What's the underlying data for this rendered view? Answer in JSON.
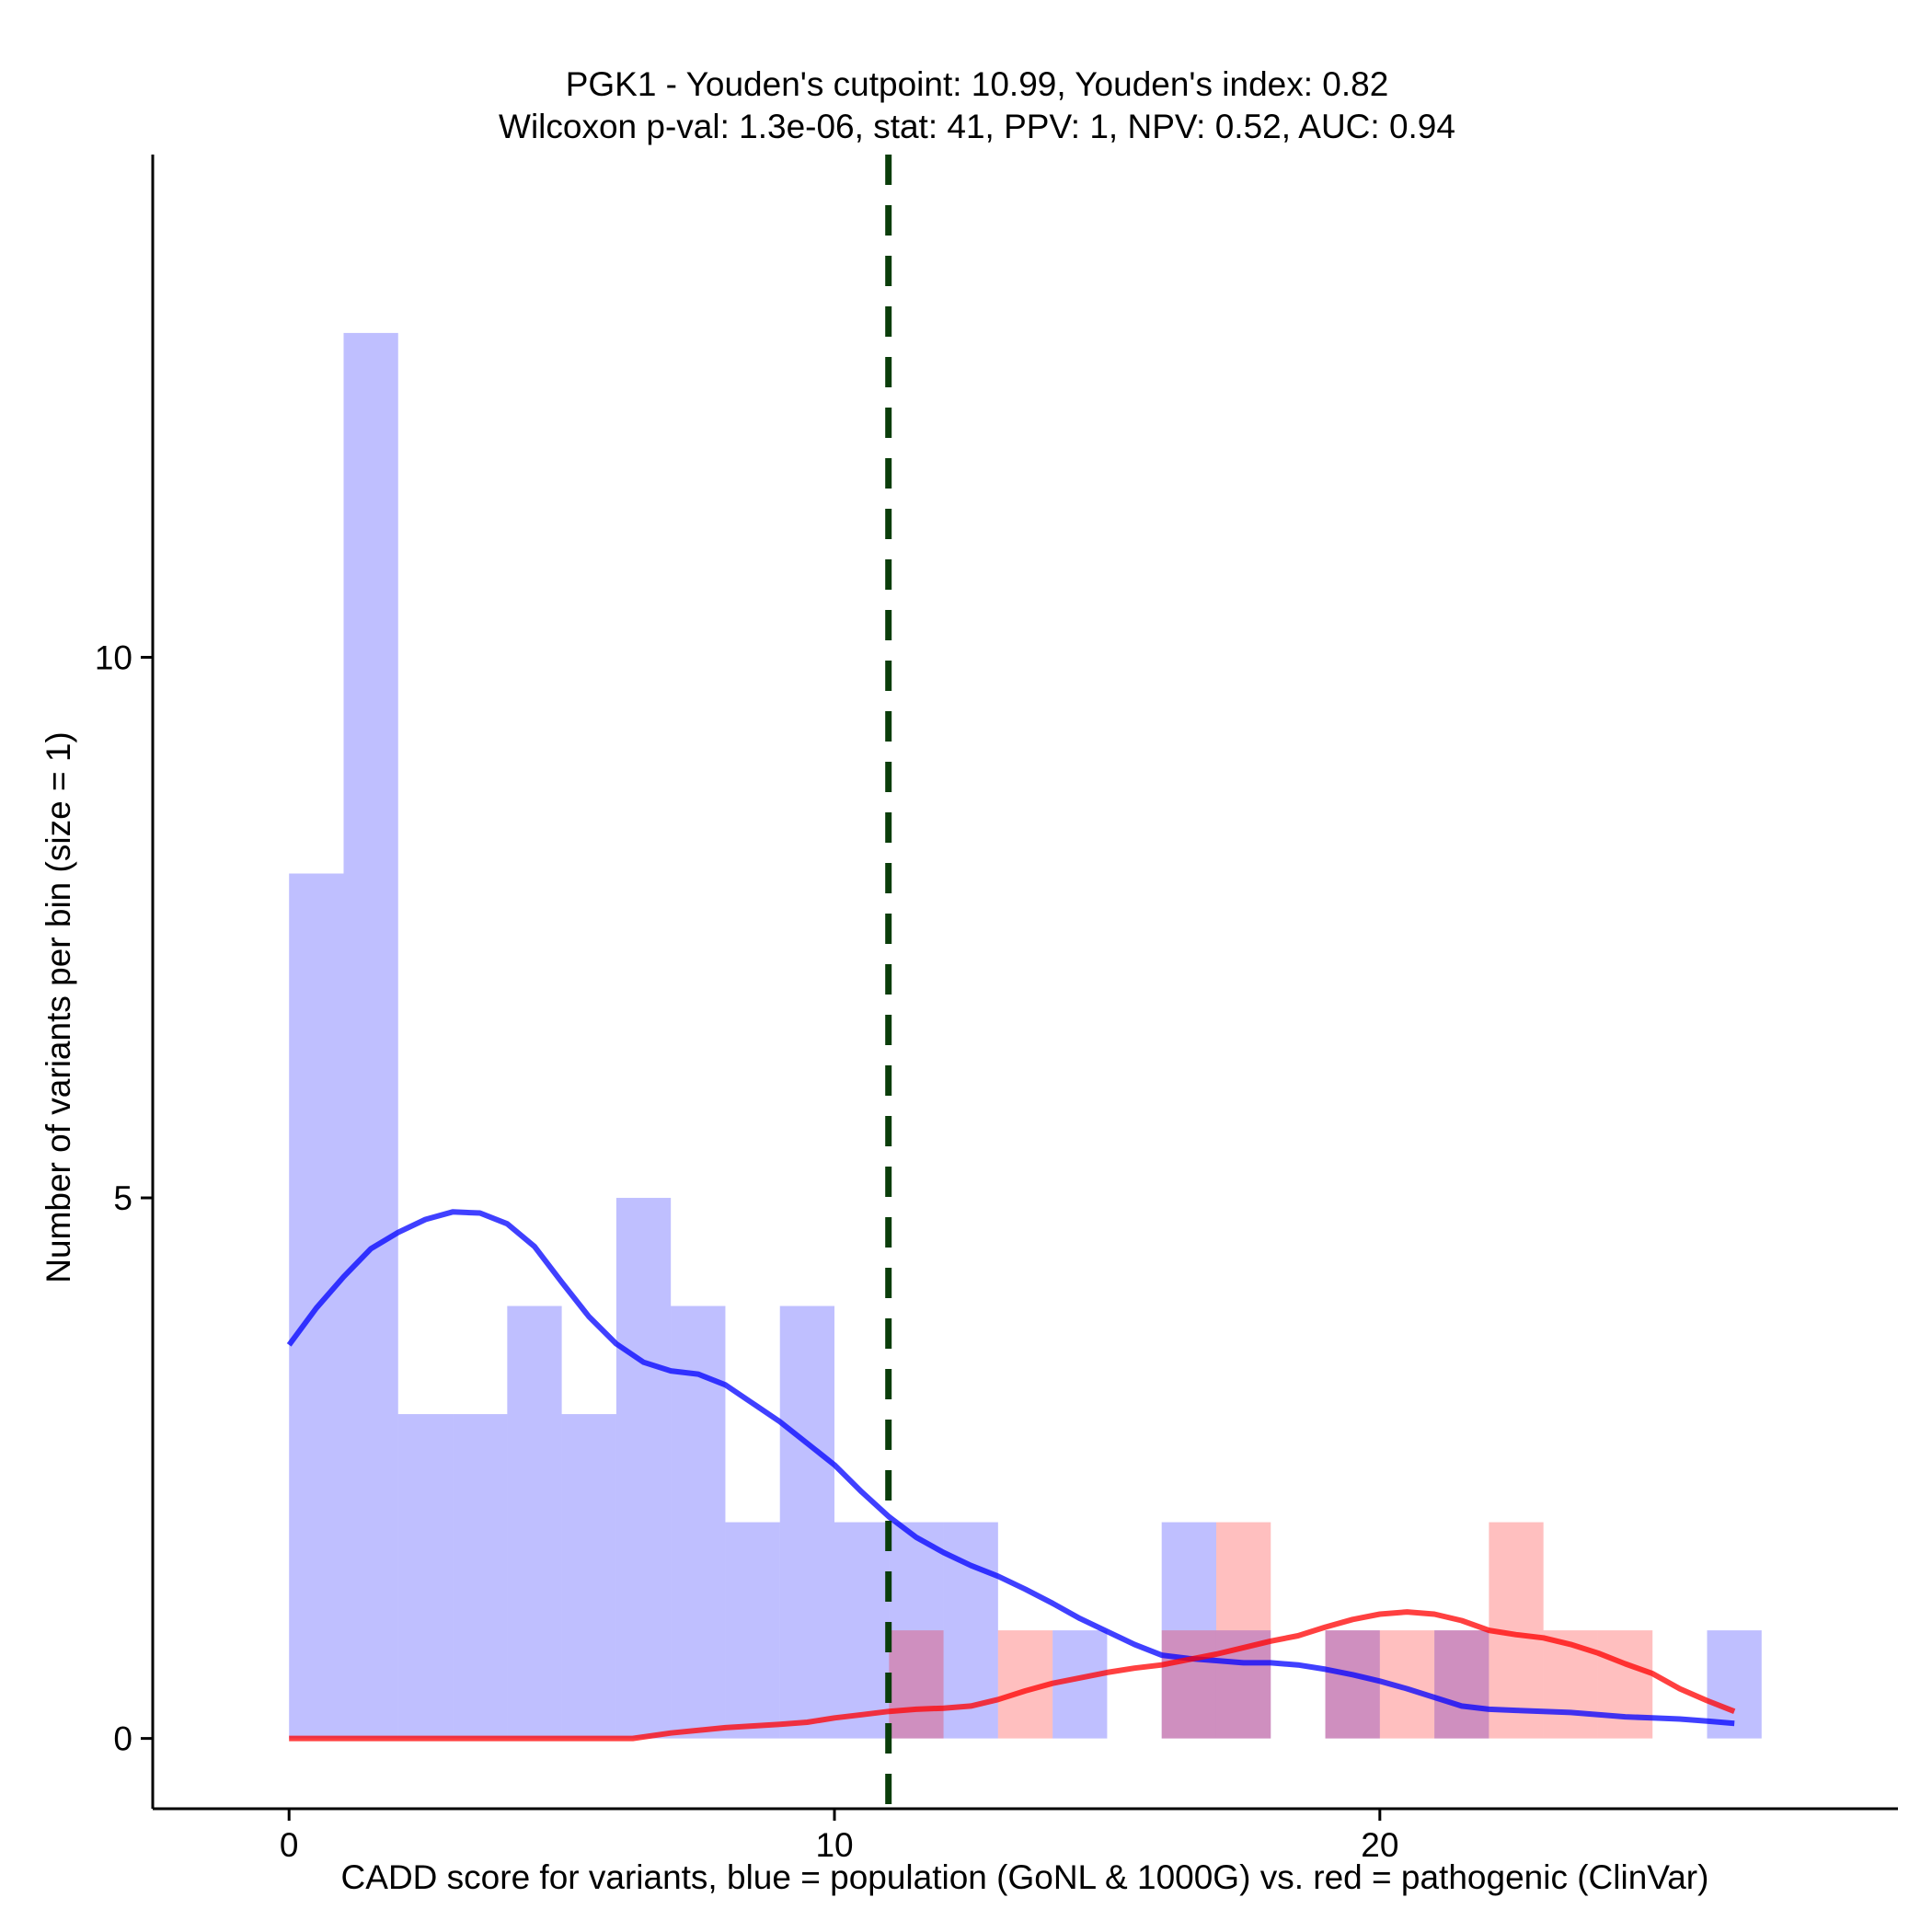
{
  "chart_data": {
    "type": "bar",
    "title_line1": "PGK1 - Youden's cutpoint: 10.99, Youden's index: 0.82",
    "title_line2": "Wilcoxon p-val: 1.3e-06, stat: 41, PPV: 1, NPV: 0.52, AUC: 0.94",
    "xlabel": "CADD score for variants, blue = population (GoNL & 1000G) vs. red = pathogenic (ClinVar)",
    "ylabel": "Number of variants per bin (size = 1)",
    "xlim": [
      -2.5,
      29.5
    ],
    "ylim": [
      -0.65,
      14.65
    ],
    "xticks": [
      {
        "value": 0,
        "label": "0"
      },
      {
        "value": 10,
        "label": "10"
      },
      {
        "value": 20,
        "label": "20"
      }
    ],
    "yticks": [
      {
        "value": 0,
        "label": "0"
      },
      {
        "value": 5,
        "label": "5"
      },
      {
        "value": 10,
        "label": "10"
      }
    ],
    "bin_width": 1,
    "cutpoint": 10.99,
    "series": [
      {
        "name": "population (GoNL & 1000G)",
        "color": "#0000ff",
        "bins": [
          {
            "start": 0,
            "count": 8
          },
          {
            "start": 1,
            "count": 13
          },
          {
            "start": 2,
            "count": 3
          },
          {
            "start": 3,
            "count": 3
          },
          {
            "start": 4,
            "count": 4
          },
          {
            "start": 5,
            "count": 3
          },
          {
            "start": 6,
            "count": 5
          },
          {
            "start": 7,
            "count": 4
          },
          {
            "start": 8,
            "count": 2
          },
          {
            "start": 9,
            "count": 4
          },
          {
            "start": 10,
            "count": 2
          },
          {
            "start": 11,
            "count": 2
          },
          {
            "start": 12,
            "count": 2
          },
          {
            "start": 14,
            "count": 1
          },
          {
            "start": 16,
            "count": 2
          },
          {
            "start": 17,
            "count": 1
          },
          {
            "start": 19,
            "count": 1
          },
          {
            "start": 21,
            "count": 1
          },
          {
            "start": 26,
            "count": 1
          }
        ],
        "density": [
          [
            0,
            3.64
          ],
          [
            0.5,
            3.98
          ],
          [
            1,
            4.27
          ],
          [
            1.5,
            4.53
          ],
          [
            2,
            4.68
          ],
          [
            2.5,
            4.8
          ],
          [
            3,
            4.87
          ],
          [
            3.5,
            4.86
          ],
          [
            4,
            4.76
          ],
          [
            4.5,
            4.55
          ],
          [
            5,
            4.22
          ],
          [
            5.5,
            3.9
          ],
          [
            6,
            3.65
          ],
          [
            6.5,
            3.48
          ],
          [
            7,
            3.4
          ],
          [
            7.5,
            3.37
          ],
          [
            8,
            3.27
          ],
          [
            8.5,
            3.1
          ],
          [
            9,
            2.93
          ],
          [
            9.5,
            2.73
          ],
          [
            10,
            2.53
          ],
          [
            10.5,
            2.28
          ],
          [
            11,
            2.05
          ],
          [
            11.5,
            1.86
          ],
          [
            12,
            1.72
          ],
          [
            12.5,
            1.6
          ],
          [
            13,
            1.5
          ],
          [
            13.5,
            1.38
          ],
          [
            14,
            1.25
          ],
          [
            14.5,
            1.11
          ],
          [
            15,
            0.99
          ],
          [
            15.5,
            0.87
          ],
          [
            16,
            0.77
          ],
          [
            16.5,
            0.74
          ],
          [
            17,
            0.72
          ],
          [
            17.5,
            0.7
          ],
          [
            18,
            0.7
          ],
          [
            18.5,
            0.68
          ],
          [
            19,
            0.64
          ],
          [
            19.5,
            0.59
          ],
          [
            20,
            0.53
          ],
          [
            20.5,
            0.46
          ],
          [
            21,
            0.38
          ],
          [
            21.5,
            0.3
          ],
          [
            22,
            0.27
          ],
          [
            22.5,
            0.26
          ],
          [
            23,
            0.25
          ],
          [
            23.5,
            0.24
          ],
          [
            24,
            0.22
          ],
          [
            24.5,
            0.2
          ],
          [
            25,
            0.19
          ],
          [
            25.5,
            0.18
          ],
          [
            26,
            0.16
          ],
          [
            26.5,
            0.14
          ]
        ]
      },
      {
        "name": "pathogenic (ClinVar)",
        "color": "#ff0000",
        "bins": [
          {
            "start": 11,
            "count": 1
          },
          {
            "start": 13,
            "count": 1
          },
          {
            "start": 16,
            "count": 1
          },
          {
            "start": 17,
            "count": 2
          },
          {
            "start": 19,
            "count": 1
          },
          {
            "start": 20,
            "count": 1
          },
          {
            "start": 21,
            "count": 1
          },
          {
            "start": 22,
            "count": 2
          },
          {
            "start": 23,
            "count": 1
          },
          {
            "start": 24,
            "count": 1
          }
        ],
        "density": [
          [
            0,
            0
          ],
          [
            1,
            0
          ],
          [
            2,
            0
          ],
          [
            3,
            0
          ],
          [
            4,
            0
          ],
          [
            5,
            0
          ],
          [
            6,
            0
          ],
          [
            6.3,
            0
          ],
          [
            7,
            0.05
          ],
          [
            8,
            0.1
          ],
          [
            9,
            0.13
          ],
          [
            9.5,
            0.15
          ],
          [
            10,
            0.19
          ],
          [
            10.5,
            0.22
          ],
          [
            11,
            0.25
          ],
          [
            11.5,
            0.27
          ],
          [
            12,
            0.28
          ],
          [
            12.5,
            0.3
          ],
          [
            13,
            0.36
          ],
          [
            13.5,
            0.44
          ],
          [
            14,
            0.51
          ],
          [
            14.5,
            0.56
          ],
          [
            15,
            0.61
          ],
          [
            15.5,
            0.65
          ],
          [
            16,
            0.68
          ],
          [
            16.5,
            0.73
          ],
          [
            17,
            0.78
          ],
          [
            17.5,
            0.84
          ],
          [
            18,
            0.9
          ],
          [
            18.5,
            0.95
          ],
          [
            19,
            1.03
          ],
          [
            19.5,
            1.1
          ],
          [
            20,
            1.15
          ],
          [
            20.5,
            1.17
          ],
          [
            21,
            1.15
          ],
          [
            21.5,
            1.09
          ],
          [
            22,
            1.0
          ],
          [
            22.5,
            0.96
          ],
          [
            23,
            0.93
          ],
          [
            23.5,
            0.87
          ],
          [
            24,
            0.79
          ],
          [
            24.5,
            0.69
          ],
          [
            25,
            0.6
          ],
          [
            25.5,
            0.46
          ],
          [
            26,
            0.35
          ],
          [
            26.5,
            0.25
          ]
        ]
      }
    ]
  }
}
